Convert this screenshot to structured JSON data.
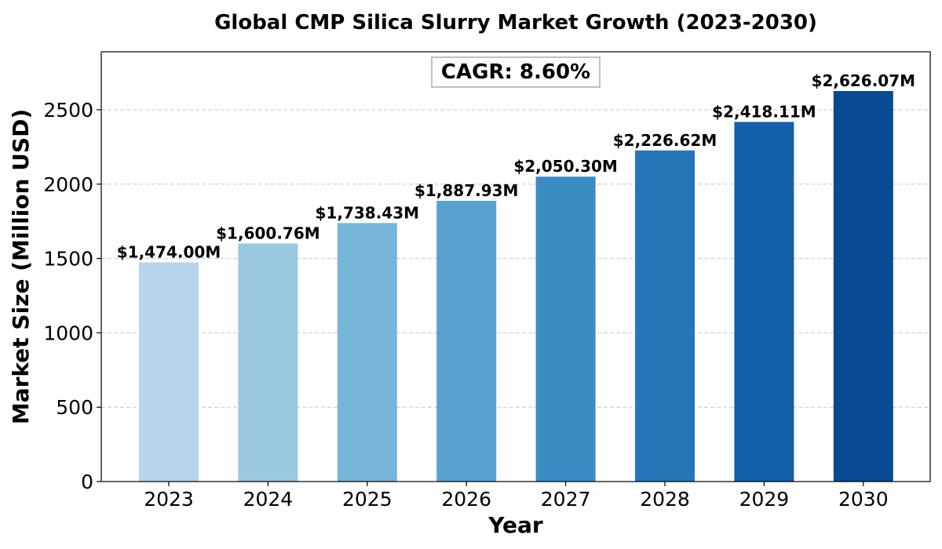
{
  "chart_data": {
    "type": "bar",
    "title": "Global CMP Silica Slurry Market Growth (2023-2030)",
    "xlabel": "Year",
    "ylabel": "Market Size (Million USD)",
    "categories": [
      "2023",
      "2024",
      "2025",
      "2026",
      "2027",
      "2028",
      "2029",
      "2030"
    ],
    "values": [
      1474.0,
      1600.76,
      1738.43,
      1887.93,
      2050.3,
      2226.62,
      2418.11,
      2626.07
    ],
    "data_labels": [
      "$1,474.00M",
      "$1,600.76M",
      "$1,738.43M",
      "$1,887.93M",
      "$2,050.30M",
      "$2,226.62M",
      "$2,418.11M",
      "$2,626.07M"
    ],
    "bar_colors": [
      "#b7d4ea",
      "#9ac8e0",
      "#77b5d9",
      "#58a1cf",
      "#3c8bc3",
      "#2777b8",
      "#1460a8",
      "#084a91"
    ],
    "yticks": [
      0,
      500,
      1000,
      1500,
      2000,
      2500
    ],
    "ytick_labels": [
      "0",
      "500",
      "1000",
      "1500",
      "2000",
      "2500"
    ],
    "ylim": [
      0,
      2890
    ],
    "grid": "y-dashed",
    "annotation": "CAGR: 8.60%"
  }
}
